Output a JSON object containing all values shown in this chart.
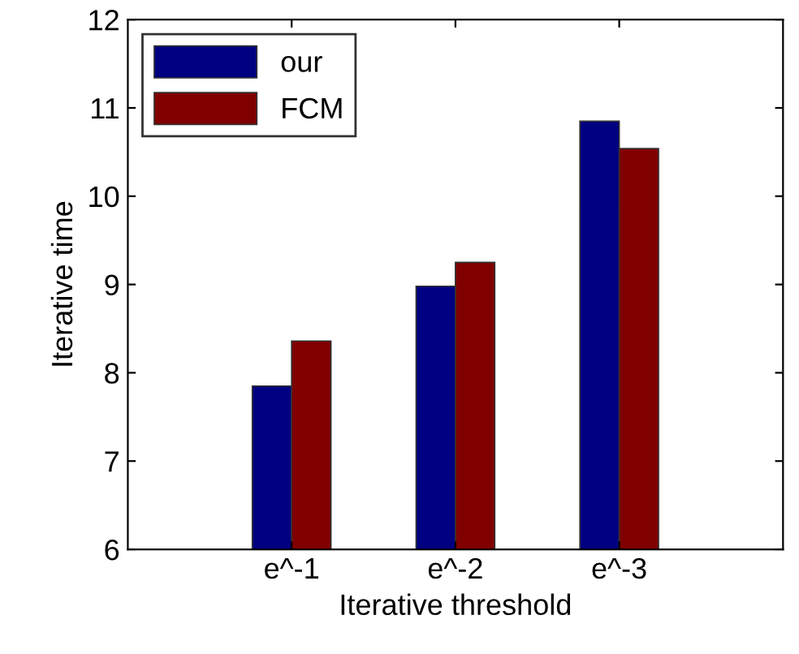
{
  "chart_data": {
    "type": "bar",
    "xlabel": "Iterative threshold",
    "ylabel": "Iterative time",
    "categories": [
      "e^-1",
      "e^-2",
      "e^-3"
    ],
    "series": [
      {
        "name": "our",
        "color": "#000080",
        "values": [
          7.85,
          8.98,
          10.85
        ]
      },
      {
        "name": "FCM",
        "color": "#800000",
        "values": [
          8.36,
          9.25,
          10.54
        ]
      }
    ],
    "ylim": [
      6,
      12
    ],
    "yticks": [
      6,
      7,
      8,
      9,
      10,
      11,
      12
    ],
    "grid": false,
    "legend": "top left"
  }
}
